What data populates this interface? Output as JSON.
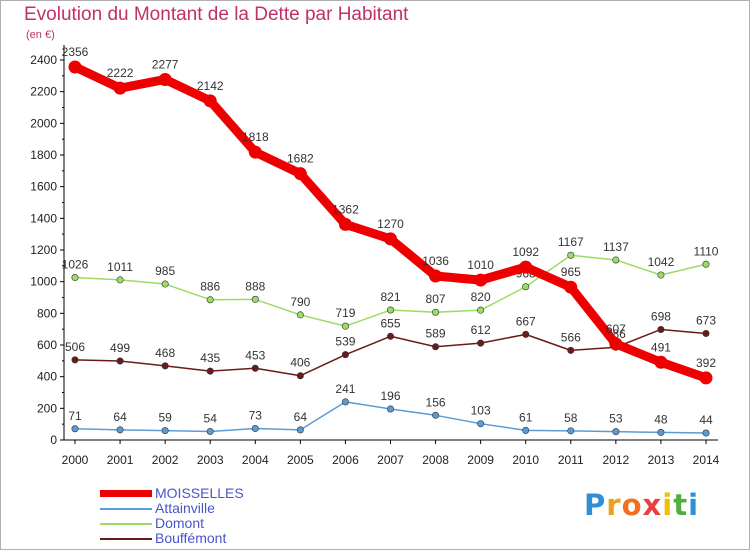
{
  "header": {
    "title": "Evolution du Montant de la Dette par Habitant",
    "unit": "(en €)"
  },
  "chart_data": {
    "type": "line",
    "x": [
      "2000",
      "2001",
      "2002",
      "2003",
      "2004",
      "2005",
      "2006",
      "2007",
      "2008",
      "2009",
      "2010",
      "2011",
      "2012",
      "2013",
      "2014"
    ],
    "ylim": [
      0,
      2400
    ],
    "yticks": [
      "0",
      "200",
      "400",
      "600",
      "800",
      "1000",
      "1200",
      "1400",
      "1600",
      "1800",
      "2000",
      "2200",
      "2400"
    ],
    "grid": false,
    "legend_position": "bottom-left",
    "series": [
      {
        "name": "MOISSELLES",
        "color": "#ee0000",
        "values": [
          2356,
          2222,
          2277,
          2142,
          1818,
          1682,
          1362,
          1270,
          1036,
          1010,
          1092,
          965,
          607,
          491,
          392
        ]
      },
      {
        "name": "Attainville",
        "color": "#5b9bd5",
        "values": [
          71,
          64,
          59,
          54,
          73,
          64,
          241,
          196,
          156,
          103,
          61,
          58,
          53,
          48,
          44
        ]
      },
      {
        "name": "Domont",
        "color": "#99dd66",
        "values": [
          1026,
          1011,
          985,
          886,
          888,
          790,
          719,
          821,
          807,
          820,
          968,
          1167,
          1137,
          1042,
          1110
        ]
      },
      {
        "name": "Bouffémont",
        "color": "#6b1a1a",
        "values": [
          506,
          499,
          468,
          435,
          453,
          406,
          539,
          655,
          589,
          612,
          667,
          566,
          586,
          698,
          673
        ]
      }
    ]
  },
  "logo": {
    "letters": [
      "P",
      "r",
      "o",
      "x",
      "i",
      "t",
      "i"
    ],
    "colors": [
      "#2f8fd8",
      "#f0a020",
      "#f07020",
      "#e84040",
      "#f0c000",
      "#4fb040",
      "#2f8fd8"
    ]
  }
}
